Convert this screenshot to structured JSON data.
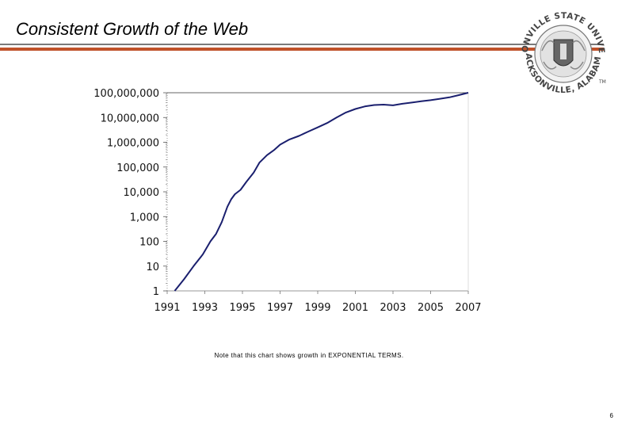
{
  "slide": {
    "title": "Consistent Growth of the Web",
    "note": "Note that this chart shows growth in EXPONENTIAL TERMS.",
    "page_number": "6"
  },
  "logo": {
    "top_text": "JACKSONVILLE STATE UNIVERSITY",
    "bottom_text": "JACKSONVILLE, ALABAMA",
    "mark": "TM",
    "icon": "university-seal"
  },
  "colors": {
    "title_rule": "#c0522a",
    "series_line": "#1a1f6e"
  },
  "chart_data": {
    "type": "line",
    "yscale": "log",
    "ylim": [
      1,
      100000000
    ],
    "xlim": [
      1991,
      2007
    ],
    "grid": false,
    "legend": "none",
    "title": "",
    "xlabel": "",
    "ylabel": "",
    "x_ticks": [
      "1991",
      "1993",
      "1995",
      "1997",
      "1999",
      "2001",
      "2003",
      "2005",
      "2007"
    ],
    "y_ticks": [
      {
        "value": 1,
        "label": "1"
      },
      {
        "value": 10,
        "label": "10"
      },
      {
        "value": 100,
        "label": "100"
      },
      {
        "value": 1000,
        "label": "1,000"
      },
      {
        "value": 10000,
        "label": "10,000"
      },
      {
        "value": 100000,
        "label": "100,000"
      },
      {
        "value": 1000000,
        "label": "1,000,000"
      },
      {
        "value": 10000000,
        "label": "10,000,000"
      },
      {
        "value": 100000000,
        "label": "100,000,000"
      }
    ],
    "series": [
      {
        "x": [
          1991.4,
          1991.9,
          1992.4,
          1992.9,
          1993.3,
          1993.6,
          1993.9,
          1994.2,
          1994.4,
          1994.6,
          1994.9,
          1995.2,
          1995.6,
          1995.9,
          1996.3,
          1996.7,
          1997.0,
          1997.5,
          1998.0,
          1998.5,
          1999.0,
          1999.5,
          2000.0,
          2000.5,
          2001.0,
          2001.5,
          2002.0,
          2002.5,
          2003.0,
          2003.5,
          2004.0,
          2004.5,
          2005.0,
          2005.5,
          2006.0,
          2006.5,
          2007.0
        ],
        "y": [
          1,
          3,
          10,
          30,
          100,
          200,
          600,
          2500,
          5000,
          8000,
          12000,
          25000,
          60000,
          150000,
          300000,
          500000,
          800000,
          1300000,
          1800000,
          2700000,
          4000000,
          6000000,
          10000000,
          16000000,
          22000000,
          28000000,
          32000000,
          33000000,
          31000000,
          36000000,
          40000000,
          45000000,
          50000000,
          57000000,
          65000000,
          80000000,
          100000000
        ]
      }
    ]
  }
}
